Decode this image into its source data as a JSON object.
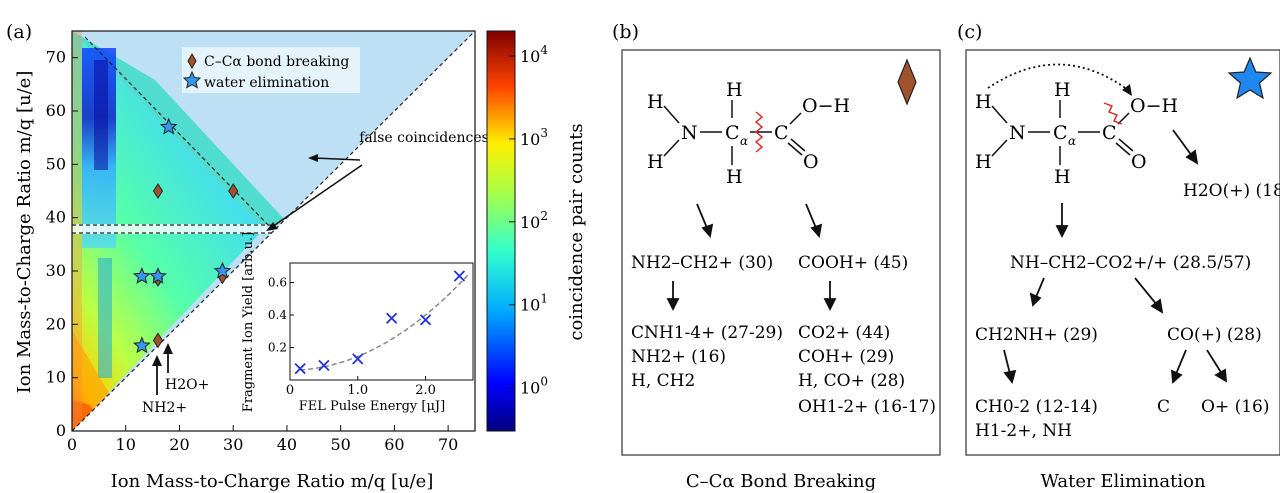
{
  "panel_a": {
    "label": "(a)",
    "xlabel": "Ion Mass-to-Charge Ratio m/q [u/e]",
    "ylabel": "Ion Mass-to-Charge Ratio m/q [u/e]",
    "xticks": [
      "0",
      "10",
      "20",
      "30",
      "40",
      "50",
      "60",
      "70"
    ],
    "yticks": [
      "0",
      "10",
      "20",
      "30",
      "40",
      "50",
      "60",
      "70"
    ],
    "legend": {
      "diamond": "C–Cα bond breaking",
      "star": "water elimination"
    },
    "annotation_false": "false coincidences",
    "label_nh2": "NH2+",
    "label_h2o": "H2O+",
    "colorbar_label": "coincidence pair counts",
    "colorbar_ticks": [
      "10^0",
      "10^1",
      "10^2",
      "10^3",
      "10^4"
    ],
    "colors": {
      "diamond": "#a0522d",
      "star": "#3399ee"
    }
  },
  "chart_data": [
    {
      "type": "heatmap",
      "xlim": [
        0,
        75
      ],
      "ylim": [
        0,
        75
      ],
      "xticks": [
        0,
        10,
        20,
        30,
        40,
        50,
        60,
        70
      ],
      "yticks": [
        0,
        10,
        20,
        30,
        40,
        50,
        60,
        70
      ],
      "colorbar": {
        "scale": "log",
        "range": [
          0.3,
          20000
        ],
        "ticks": [
          1,
          10,
          100,
          1000,
          10000
        ]
      },
      "markers_diamond": [
        [
          16,
          45
        ],
        [
          30,
          45
        ],
        [
          16,
          29
        ],
        [
          16,
          28.5
        ],
        [
          28,
          29
        ],
        [
          16,
          17
        ]
      ],
      "markers_star": [
        [
          18,
          57
        ],
        [
          13,
          29
        ],
        [
          16,
          29
        ],
        [
          28,
          30
        ],
        [
          13,
          16
        ]
      ]
    },
    {
      "type": "scatter",
      "xlabel": "FEL Pulse Energy [μJ]",
      "ylabel": "Fragment Ion Yield [arb.u.]",
      "xlim": [
        0,
        2.7
      ],
      "ylim": [
        0,
        0.72
      ],
      "xticks": [
        "0",
        "1.0",
        "2.0"
      ],
      "yticks": [
        "0.2",
        "0.4",
        "0.6"
      ],
      "x": [
        0.15,
        0.5,
        1.0,
        1.5,
        2.0,
        2.5
      ],
      "y": [
        0.07,
        0.09,
        0.13,
        0.38,
        0.37,
        0.64
      ],
      "fit": "quadratic dashed"
    }
  ],
  "panel_b": {
    "label": "(b)",
    "atoms": {
      "h1": "H",
      "h2": "H",
      "n": "N",
      "ca": "C",
      "ca_sub": "α",
      "h_top": "H",
      "h_bot": "H",
      "c": "C",
      "oh": "O−H",
      "o": "O"
    },
    "left_product": "NH2–CH2+ (30)",
    "left_frags": [
      "CNH1-4+ (27-29)",
      "NH2+ (16)",
      "H, CH2"
    ],
    "right_product": "COOH+ (45)",
    "right_frags": [
      "CO2+ (44)",
      "COH+ (29)",
      "H, CO+ (28)",
      "OH1-2+ (16-17)"
    ],
    "caption": "C–Cα Bond Breaking"
  },
  "panel_c": {
    "label": "(c)",
    "atoms": {
      "h1": "H",
      "h2": "H",
      "n": "N",
      "ca": "C",
      "ca_sub": "α",
      "h_top": "H",
      "h_bot": "H",
      "c": "C",
      "oh": "O−H",
      "o": "O"
    },
    "water": "H2O(+) (18)",
    "main_product": "NH–CH2–CO2+/+ (28.5/57)",
    "left_product": "CH2NH+ (29)",
    "left_frags": [
      "CH0-2 (12-14)",
      "H1-2+, NH"
    ],
    "right_product": "CO(+) (28)",
    "right_frags": [
      "C",
      "O+ (16)"
    ],
    "caption": "Water Elimination"
  }
}
